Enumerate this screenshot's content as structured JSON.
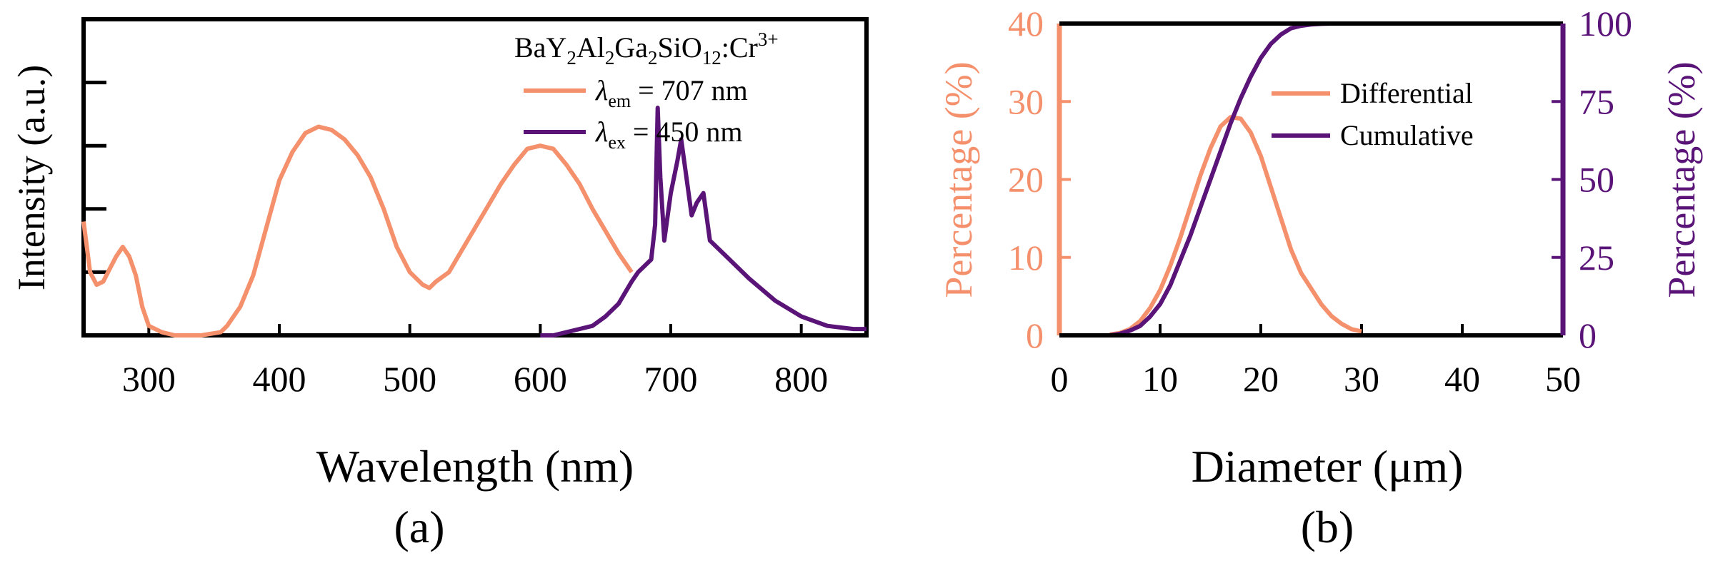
{
  "colors": {
    "excitation": "#F5906C",
    "emission": "#5A1478",
    "differential": "#F5906C",
    "cumulative": "#5A1478",
    "axis": "#000000"
  },
  "chart_data": [
    {
      "panel_label": "(a)",
      "type": "line",
      "xlabel": "Wavelength (nm)",
      "ylabel": "Intensity (a.u.)",
      "xlim": [
        250,
        850
      ],
      "ylim": [
        0,
        1.0
      ],
      "x_ticks": [
        300,
        400,
        500,
        600,
        700,
        800
      ],
      "y_tick_labels_shown": false,
      "legend": {
        "placement": "top-right",
        "sample": {
          "base": "BaY",
          "sub1": "2",
          "mid1": "Al",
          "sub2": "2",
          "mid2": "Ga",
          "sub3": "2",
          "mid3": "SiO",
          "sub4": "12",
          "mid4": ":Cr",
          "sup": "3+"
        },
        "entries": [
          {
            "symbol": "λ",
            "sub": "em",
            "rest": " = 707 nm"
          },
          {
            "symbol": "λ",
            "sub": "ex",
            "rest": " = 450 nm"
          }
        ]
      },
      "series": [
        {
          "x": [
            250,
            255,
            260,
            265,
            270,
            275,
            280,
            285,
            290,
            295,
            300,
            310,
            320,
            340,
            355,
            360,
            370,
            380,
            390,
            400,
            410,
            420,
            430,
            440,
            450,
            460,
            470,
            480,
            490,
            500,
            510,
            515,
            520,
            530,
            540,
            550,
            560,
            570,
            580,
            590,
            600,
            610,
            620,
            630,
            640,
            650,
            660,
            670
          ],
          "y": [
            0.36,
            0.2,
            0.16,
            0.17,
            0.21,
            0.25,
            0.28,
            0.25,
            0.19,
            0.09,
            0.03,
            0.01,
            0.0,
            0.0,
            0.01,
            0.03,
            0.09,
            0.19,
            0.34,
            0.49,
            0.58,
            0.64,
            0.66,
            0.65,
            0.62,
            0.57,
            0.5,
            0.4,
            0.28,
            0.2,
            0.16,
            0.15,
            0.17,
            0.2,
            0.27,
            0.34,
            0.41,
            0.48,
            0.54,
            0.59,
            0.6,
            0.59,
            0.54,
            0.48,
            0.4,
            0.33,
            0.26,
            0.2
          ]
        },
        {
          "x": [
            600,
            610,
            620,
            630,
            640,
            650,
            660,
            670,
            675,
            680,
            685,
            688,
            690,
            692,
            695,
            700,
            705,
            708,
            712,
            716,
            720,
            725,
            730,
            740,
            760,
            780,
            800,
            820,
            840,
            850
          ],
          "y": [
            0.0,
            0.0,
            0.01,
            0.02,
            0.03,
            0.06,
            0.1,
            0.17,
            0.2,
            0.22,
            0.24,
            0.35,
            0.72,
            0.5,
            0.3,
            0.45,
            0.55,
            0.62,
            0.5,
            0.38,
            0.42,
            0.45,
            0.3,
            0.26,
            0.18,
            0.11,
            0.06,
            0.03,
            0.02,
            0.02
          ]
        }
      ]
    },
    {
      "panel_label": "(b)",
      "type": "line",
      "xlabel": "Diameter (μm)",
      "ylabel_left": "Percentage (%)",
      "ylabel_right": "Percentage (%)",
      "xlim": [
        0,
        50
      ],
      "ylim_left": [
        0,
        40
      ],
      "ylim_right": [
        0,
        100
      ],
      "x_ticks": [
        0,
        10,
        20,
        30,
        40,
        50
      ],
      "y_ticks_left": [
        0,
        10,
        20,
        30,
        40
      ],
      "y_ticks_right": [
        0,
        25,
        50,
        75,
        100
      ],
      "legend": {
        "placement": "top-right"
      },
      "series": [
        {
          "name": "Differential",
          "axis": "left",
          "x": [
            5,
            6,
            7,
            8,
            9,
            10,
            11,
            12,
            13,
            14,
            15,
            16,
            17,
            18,
            19,
            20,
            21,
            22,
            23,
            24,
            25,
            26,
            27,
            28,
            29,
            30
          ],
          "y": [
            0.1,
            0.3,
            0.8,
            1.8,
            3.5,
            5.8,
            8.9,
            12.5,
            16.5,
            20.5,
            24.0,
            26.8,
            28.0,
            27.8,
            26.0,
            23.0,
            19.0,
            15.0,
            11.0,
            8.0,
            6.0,
            4.0,
            2.5,
            1.5,
            0.8,
            0.5
          ]
        },
        {
          "name": "Cumulative",
          "axis": "right",
          "x": [
            5,
            6,
            7,
            8,
            9,
            10,
            11,
            12,
            13,
            14,
            15,
            16,
            17,
            18,
            19,
            20,
            21,
            22,
            23,
            24,
            25,
            26,
            27,
            28,
            29,
            30,
            31
          ],
          "y": [
            0.0,
            0.5,
            1.5,
            3.0,
            6.0,
            10.0,
            16.0,
            24.0,
            32.0,
            41.0,
            50.0,
            59.0,
            68.0,
            76.0,
            83.0,
            89.0,
            93.5,
            96.5,
            98.5,
            99.3,
            99.7,
            99.9,
            100,
            100,
            100,
            100,
            100
          ]
        }
      ]
    }
  ]
}
